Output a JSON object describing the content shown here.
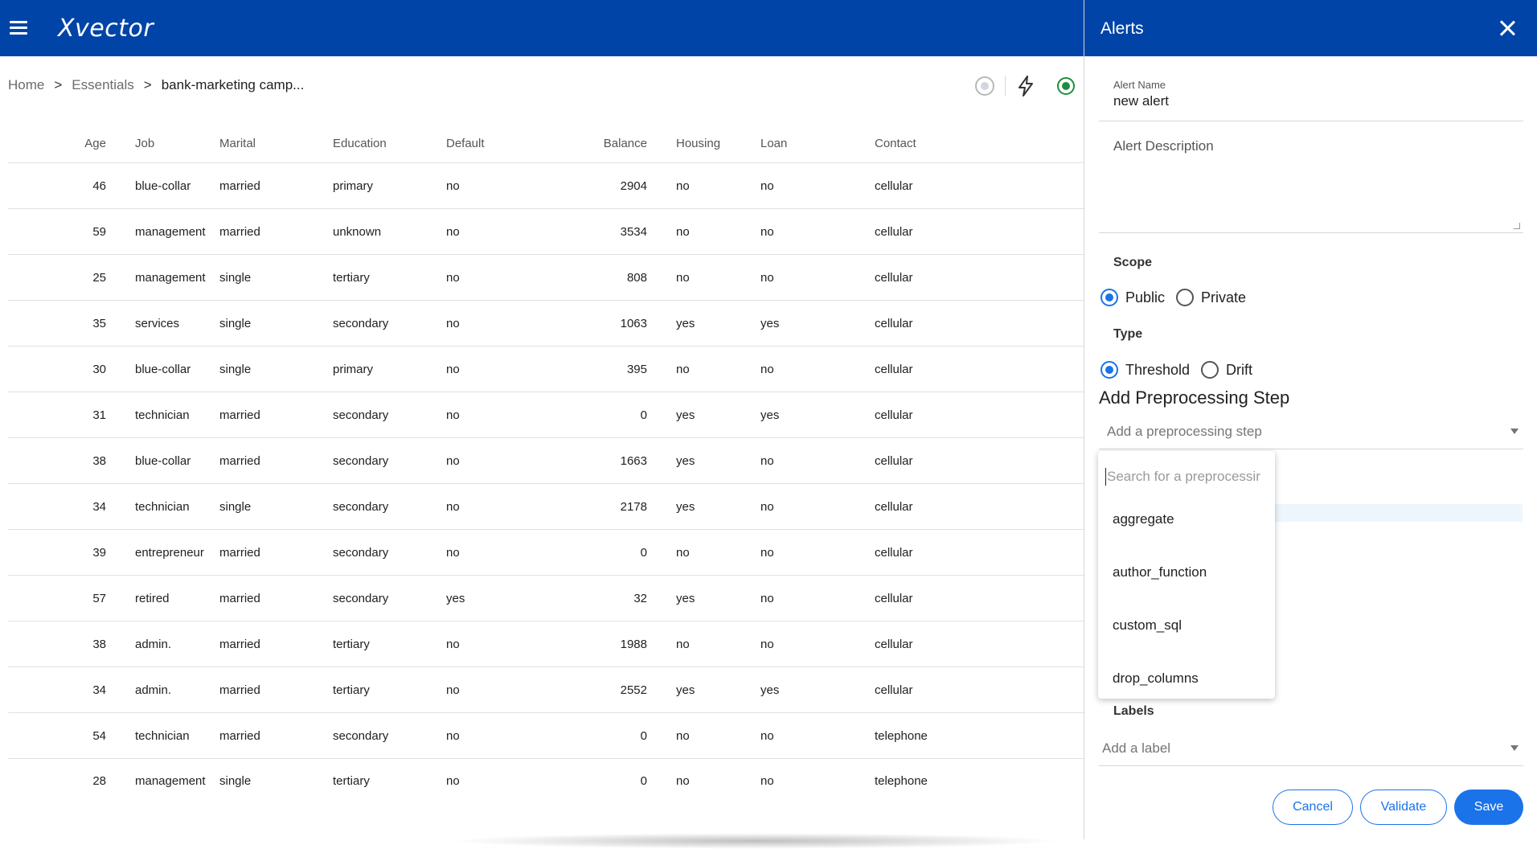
{
  "app": {
    "logo": "Xvector"
  },
  "breadcrumb": {
    "home": "Home",
    "sep": ">",
    "section": "Essentials",
    "current": "bank-marketing camp..."
  },
  "table": {
    "headers": [
      "Age",
      "Job",
      "Marital",
      "Education",
      "Default",
      "Balance",
      "Housing",
      "Loan",
      "Contact"
    ],
    "rows": [
      [
        "46",
        "blue-collar",
        "married",
        "primary",
        "no",
        "2904",
        "no",
        "no",
        "cellular"
      ],
      [
        "59",
        "management",
        "married",
        "unknown",
        "no",
        "3534",
        "no",
        "no",
        "cellular"
      ],
      [
        "25",
        "management",
        "single",
        "tertiary",
        "no",
        "808",
        "no",
        "no",
        "cellular"
      ],
      [
        "35",
        "services",
        "single",
        "secondary",
        "no",
        "1063",
        "yes",
        "yes",
        "cellular"
      ],
      [
        "30",
        "blue-collar",
        "single",
        "primary",
        "no",
        "395",
        "no",
        "no",
        "cellular"
      ],
      [
        "31",
        "technician",
        "married",
        "secondary",
        "no",
        "0",
        "yes",
        "yes",
        "cellular"
      ],
      [
        "38",
        "blue-collar",
        "married",
        "secondary",
        "no",
        "1663",
        "yes",
        "no",
        "cellular"
      ],
      [
        "34",
        "technician",
        "single",
        "secondary",
        "no",
        "2178",
        "yes",
        "no",
        "cellular"
      ],
      [
        "39",
        "entrepreneur",
        "married",
        "secondary",
        "no",
        "0",
        "no",
        "no",
        "cellular"
      ],
      [
        "57",
        "retired",
        "married",
        "secondary",
        "yes",
        "32",
        "yes",
        "no",
        "cellular"
      ],
      [
        "38",
        "admin.",
        "married",
        "tertiary",
        "no",
        "1988",
        "no",
        "no",
        "cellular"
      ],
      [
        "34",
        "admin.",
        "married",
        "tertiary",
        "no",
        "2552",
        "yes",
        "yes",
        "cellular"
      ],
      [
        "54",
        "technician",
        "married",
        "secondary",
        "no",
        "0",
        "no",
        "no",
        "telephone"
      ],
      [
        "28",
        "management",
        "single",
        "tertiary",
        "no",
        "0",
        "no",
        "no",
        "telephone"
      ]
    ]
  },
  "panel": {
    "title": "Alerts",
    "alert_name_label": "Alert Name",
    "alert_name_value": "new alert",
    "alert_description_placeholder": "Alert Description",
    "scope_label": "Scope",
    "scope_options": [
      "Public",
      "Private"
    ],
    "type_label": "Type",
    "type_options": [
      "Threshold",
      "Drift"
    ],
    "preprocessing_title": "Add Preprocessing Step",
    "preprocessing_placeholder": "Add a preprocessing step",
    "search_placeholder": "Search for a preprocessir",
    "preprocessing_options": [
      "aggregate",
      "author_function",
      "custom_sql",
      "drop_columns"
    ],
    "labels_label": "Labels",
    "labels_placeholder": "Add a label",
    "buttons": {
      "cancel": "Cancel",
      "validate": "Validate",
      "save": "Save"
    }
  },
  "colors": {
    "brand": "#0044a7",
    "accent": "#1a73e8",
    "status_ok": "#1e8e3e"
  }
}
